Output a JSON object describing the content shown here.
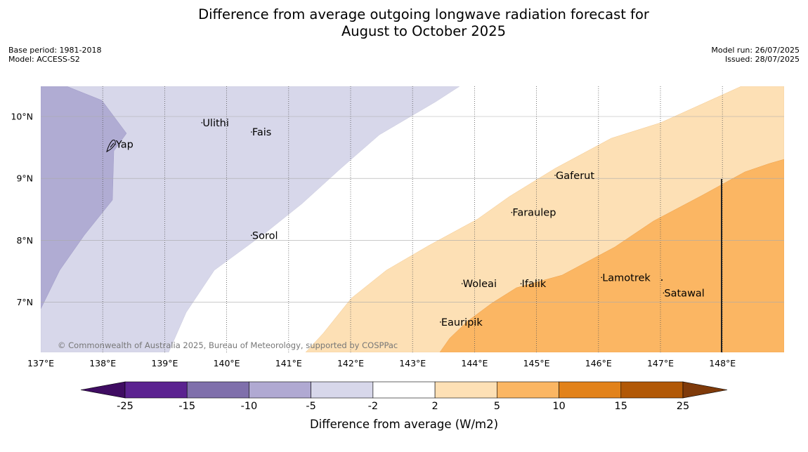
{
  "title_line1": "Difference from average outgoing longwave radiation forecast for",
  "title_line2": "August to October 2025",
  "meta_left": {
    "base_period": "Base period: 1981-2018",
    "model": "Model: ACCESS-S2"
  },
  "meta_right": {
    "model_run": "Model run: 26/07/2025",
    "issued": "Issued: 28/07/2025"
  },
  "map": {
    "lon_range": [
      137,
      149
    ],
    "lat_range": [
      6.2,
      10.5
    ],
    "lon_ticks": [
      "137°E",
      "138°E",
      "139°E",
      "140°E",
      "141°E",
      "142°E",
      "143°E",
      "144°E",
      "145°E",
      "146°E",
      "147°E",
      "148°E"
    ],
    "lat_ticks": [
      "10°N",
      "9°N",
      "8°N",
      "7°N"
    ],
    "places": [
      {
        "name": "Yap",
        "lon": 138.2,
        "lat": 9.55
      },
      {
        "name": "Ulithi",
        "lon": 139.6,
        "lat": 9.9
      },
      {
        "name": "Fais",
        "lon": 140.4,
        "lat": 9.75
      },
      {
        "name": "Gaferut",
        "lon": 145.3,
        "lat": 9.05
      },
      {
        "name": "Faraulep",
        "lon": 144.6,
        "lat": 8.45
      },
      {
        "name": "Sorol",
        "lon": 140.4,
        "lat": 8.08
      },
      {
        "name": "Woleai",
        "lon": 143.8,
        "lat": 7.3
      },
      {
        "name": "Ifalik",
        "lon": 144.75,
        "lat": 7.3
      },
      {
        "name": "Lamotrek",
        "lon": 146.05,
        "lat": 7.4
      },
      {
        "name": "Satawal",
        "lon": 147.05,
        "lat": 7.15
      },
      {
        "name": "Eauripik",
        "lon": 143.45,
        "lat": 6.68
      }
    ],
    "copyright": "© Commonwealth of Australia 2025, Bureau of Meteorology, supported by COSPPac"
  },
  "colorbar": {
    "title": "Difference from average (W/m2)",
    "labels": [
      "-25",
      "-15",
      "-10",
      "-5",
      "-2",
      "2",
      "5",
      "10",
      "15",
      "25"
    ],
    "colors": [
      "#3f0c62",
      "#5b2290",
      "#7f6fab",
      "#b0a9d2",
      "#d7d7ea",
      "#ffffff",
      "#fde0b5",
      "#fbb663",
      "#e2821a",
      "#b15806",
      "#7f3a0a"
    ]
  }
}
